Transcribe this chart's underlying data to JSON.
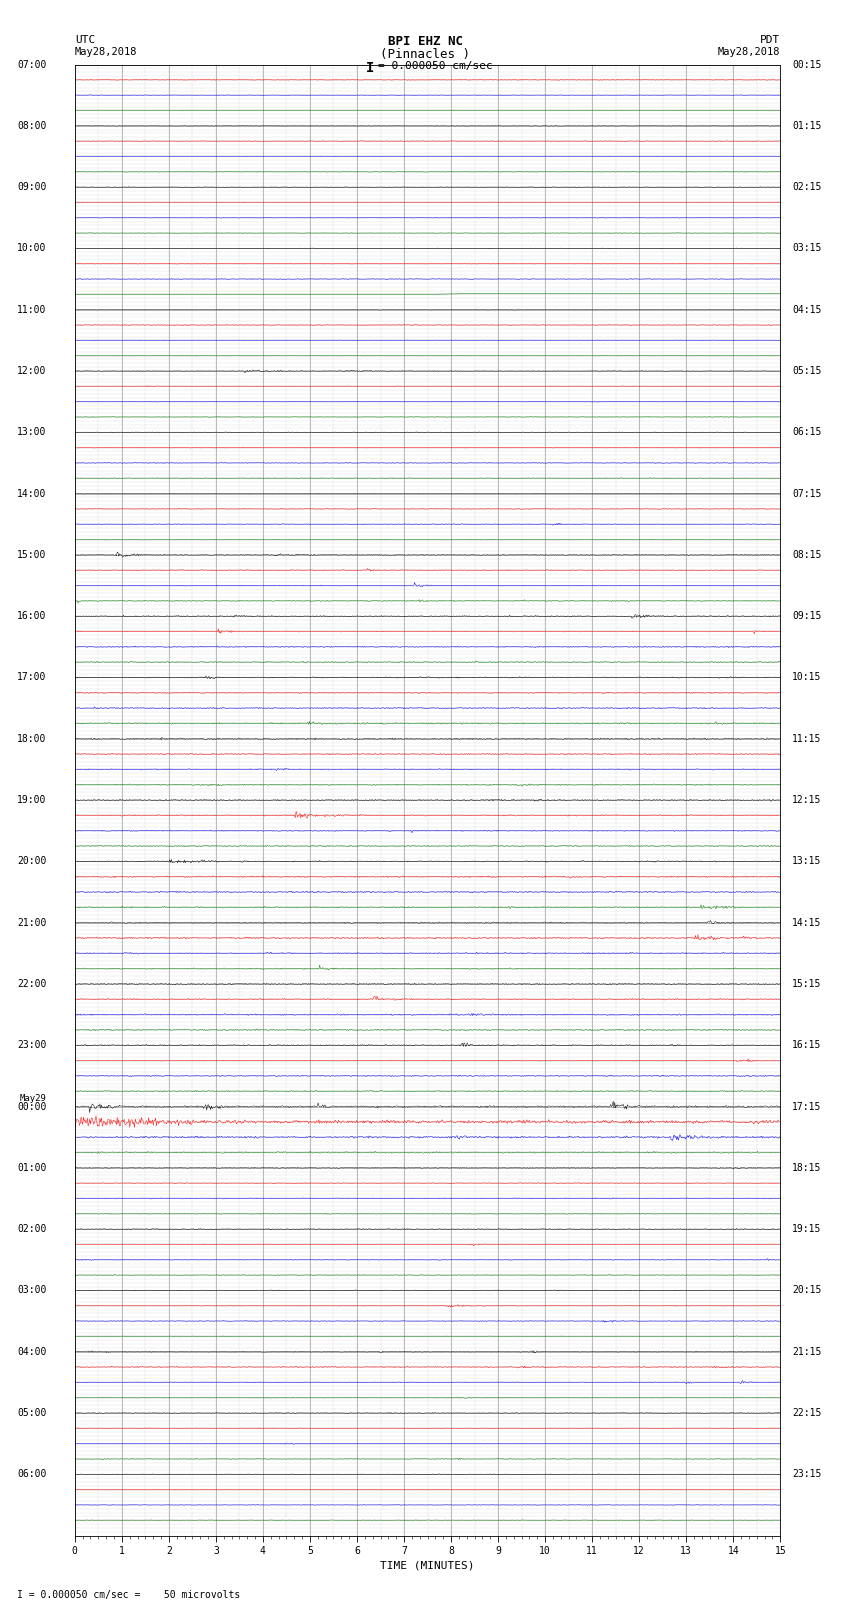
{
  "title_line1": "BPI EHZ NC",
  "title_line2": "(Pinnacles )",
  "scale_label": "I = 0.000050 cm/sec",
  "utc_header": "UTC",
  "utc_date": "May28,2018",
  "pdt_header": "PDT",
  "pdt_date": "May28,2018",
  "xlabel": "TIME (MINUTES)",
  "footer": "I = 0.000050 cm/sec =    50 microvolts",
  "utc_labels": [
    "07:00",
    "08:00",
    "09:00",
    "10:00",
    "11:00",
    "12:00",
    "13:00",
    "14:00",
    "15:00",
    "16:00",
    "17:00",
    "18:00",
    "19:00",
    "20:00",
    "21:00",
    "22:00",
    "23:00",
    "00:00",
    "01:00",
    "02:00",
    "03:00",
    "04:00",
    "05:00",
    "06:00"
  ],
  "may29_row": 17,
  "pdt_labels": [
    "00:15",
    "01:15",
    "02:15",
    "03:15",
    "04:15",
    "05:15",
    "06:15",
    "07:15",
    "08:15",
    "09:15",
    "10:15",
    "11:15",
    "12:15",
    "13:15",
    "14:15",
    "15:15",
    "16:15",
    "17:15",
    "18:15",
    "19:15",
    "20:15",
    "21:15",
    "22:15",
    "23:15"
  ],
  "n_hour_groups": 24,
  "traces_per_group": 4,
  "n_minutes": 15,
  "trace_colors": [
    "black",
    "red",
    "blue",
    "green"
  ],
  "bg_color": "#ffffff",
  "grid_color": "#808080",
  "noise_levels": [
    0.008,
    0.008,
    0.008,
    0.008,
    0.008,
    0.008,
    0.01,
    0.01,
    0.012,
    0.015,
    0.018,
    0.018,
    0.02,
    0.02,
    0.02,
    0.018,
    0.015,
    0.025,
    0.012,
    0.01,
    0.01,
    0.012,
    0.008,
    0.008
  ],
  "event_amplitudes": [
    0.0,
    0.0,
    0.0,
    0.0,
    0.0,
    0.06,
    0.0,
    0.05,
    0.08,
    0.1,
    0.12,
    0.1,
    0.12,
    0.1,
    0.12,
    0.08,
    0.1,
    0.2,
    0.06,
    0.05,
    0.05,
    0.08,
    0.04,
    0.0
  ]
}
